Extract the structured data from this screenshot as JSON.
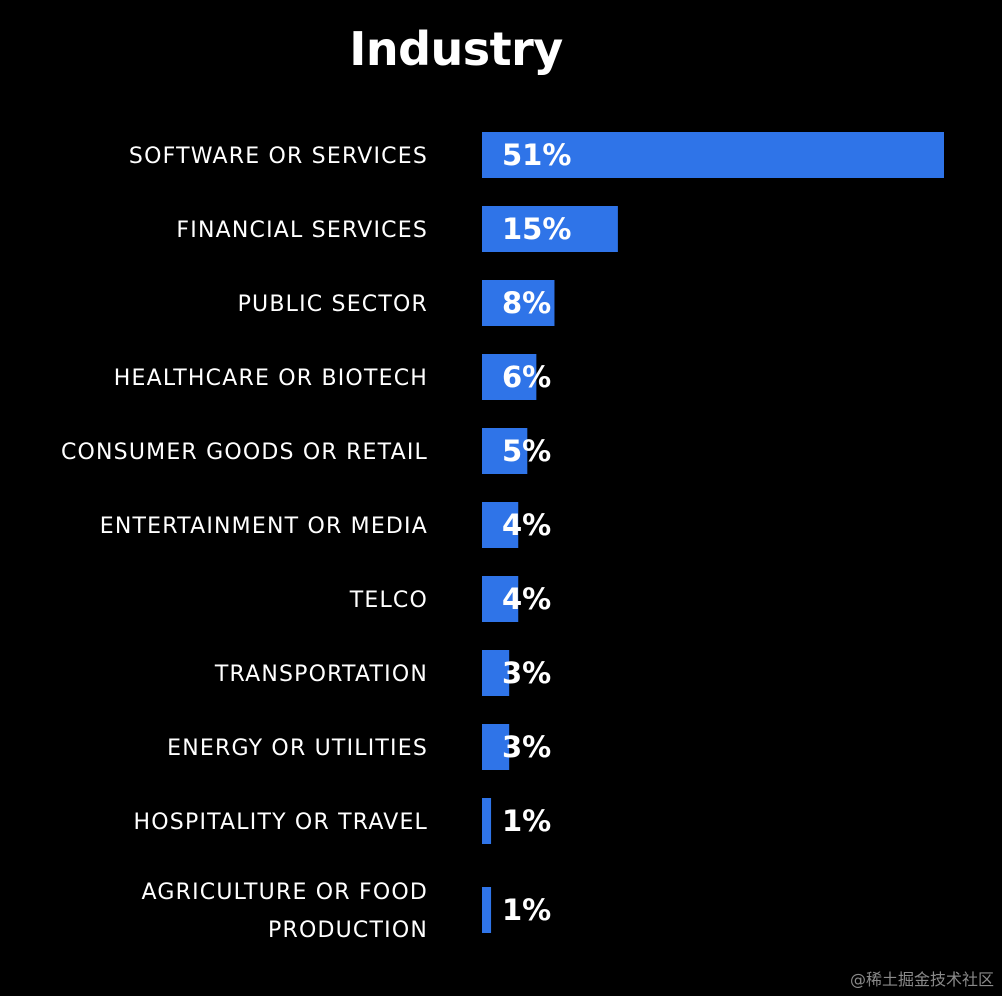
{
  "chart_data": {
    "type": "bar",
    "orientation": "horizontal",
    "title": "Industry",
    "categories": [
      "SOFTWARE OR SERVICES",
      "FINANCIAL SERVICES",
      "PUBLIC SECTOR",
      "HEALTHCARE OR BIOTECH",
      "CONSUMER GOODS OR RETAIL",
      "ENTERTAINMENT OR MEDIA",
      "TELCO",
      "TRANSPORTATION",
      "ENERGY OR UTILITIES",
      "HOSPITALITY OR TRAVEL",
      "AGRICULTURE OR FOOD PRODUCTION"
    ],
    "values": [
      51,
      15,
      8,
      6,
      5,
      4,
      4,
      3,
      3,
      1,
      1
    ],
    "value_labels": [
      "51%",
      "15%",
      "8%",
      "6%",
      "5%",
      "4%",
      "4%",
      "3%",
      "3%",
      "1%",
      "1%"
    ],
    "xlim": [
      0,
      51
    ],
    "grid": false,
    "colors": {
      "bar": "#2f74e8",
      "background": "#000000",
      "text": "#ffffff"
    }
  },
  "watermark": "@稀土掘金技术社区"
}
